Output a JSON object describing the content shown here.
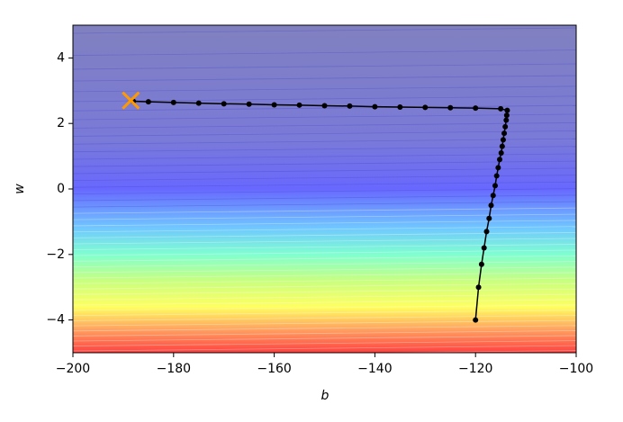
{
  "chart_data": {
    "type": "path",
    "xlabel": "b",
    "ylabel": "w",
    "xlim": [
      -200,
      -100
    ],
    "ylim": [
      -5,
      5
    ],
    "xticks": [
      {
        "value": -200,
        "label": "−200"
      },
      {
        "value": -180,
        "label": "−180"
      },
      {
        "value": -160,
        "label": "−160"
      },
      {
        "value": -140,
        "label": "−140"
      },
      {
        "value": -120,
        "label": "−120"
      },
      {
        "value": -100,
        "label": "−100"
      }
    ],
    "yticks": [
      {
        "value": -4,
        "label": "−4"
      },
      {
        "value": -2,
        "label": "−2"
      },
      0,
      2,
      4
    ],
    "series": [
      {
        "color": "#000000",
        "x": [
          -120,
          -119.4,
          -118.8,
          -118.3,
          -117.8,
          -117.3,
          -116.9,
          -116.5,
          -116.1,
          -115.8,
          -115.5,
          -115.2,
          -114.9,
          -114.7,
          -114.5,
          -114.3,
          -114.1,
          -113.9,
          -113.8,
          -113.7,
          -115,
          -120,
          -125,
          -130,
          -135,
          -140,
          -145,
          -150,
          -155,
          -160,
          -165,
          -170,
          -175,
          -180,
          -185,
          -188
        ],
        "y": [
          -4,
          -3,
          -2.3,
          -1.8,
          -1.3,
          -0.9,
          -0.5,
          -0.2,
          0.1,
          0.4,
          0.65,
          0.9,
          1.1,
          1.3,
          1.5,
          1.7,
          1.9,
          2.1,
          2.25,
          2.4,
          2.45,
          2.47,
          2.48,
          2.49,
          2.5,
          2.51,
          2.53,
          2.54,
          2.56,
          2.57,
          2.59,
          2.6,
          2.62,
          2.64,
          2.66,
          2.68
        ]
      }
    ],
    "end_point": {
      "color": "#ff9900",
      "x": -188.5,
      "y": 2.7
    }
  }
}
